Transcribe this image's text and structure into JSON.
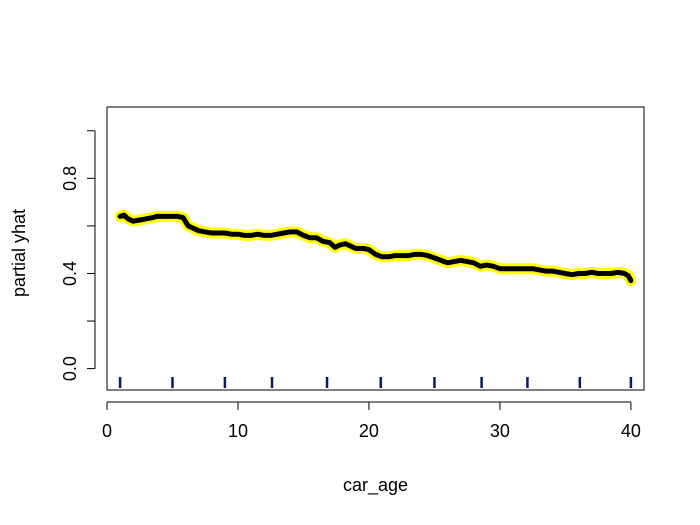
{
  "chart_data": {
    "type": "line",
    "title": "",
    "xlabel": "car_age",
    "ylabel": "partial yhat",
    "xlim": [
      0,
      41
    ],
    "ylim": [
      -0.09,
      1.1
    ],
    "xticks": [
      0,
      10,
      20,
      30,
      40
    ],
    "xtick_labels": [
      "0",
      "10",
      "20",
      "30",
      "40"
    ],
    "yticks": [
      0.0,
      0.2,
      0.4,
      0.6,
      0.8,
      1.0
    ],
    "ytick_labels": [
      "0.0",
      "",
      "0.4",
      "",
      "0.8",
      ""
    ],
    "grid": false,
    "line_color": "#000000",
    "highlight_color": "#ffff00",
    "rug_color": "#0a1a5c",
    "rug_x": [
      1,
      5,
      9,
      12.6,
      16.8,
      20.9,
      25,
      28.6,
      32.1,
      36.1,
      40
    ],
    "series": [
      {
        "x": [
          1.0,
          1.3,
          1.6,
          2.0,
          2.5,
          3.0,
          3.5,
          3.8,
          4.2,
          4.6,
          5.0,
          5.4,
          5.8,
          6.2,
          6.6,
          7.0,
          7.5,
          8.0,
          8.5,
          9.0,
          9.5,
          10.0,
          10.5,
          11.0,
          11.5,
          12.0,
          12.5,
          13.0,
          13.5,
          14.0,
          14.5,
          15.0,
          15.5,
          16.0,
          16.5,
          17.0,
          17.4,
          17.8,
          18.2,
          18.6,
          19.0,
          19.3,
          19.6,
          20.0,
          20.5,
          21.0,
          21.5,
          22.0,
          22.5,
          23.0,
          23.5,
          24.0,
          24.5,
          25.0,
          25.5,
          26.0,
          26.5,
          27.0,
          27.5,
          28.0,
          28.5,
          29.0,
          29.5,
          30.0,
          30.5,
          31.0,
          31.5,
          32.0,
          32.5,
          33.0,
          33.5,
          34.0,
          34.5,
          35.0,
          35.5,
          36.0,
          36.5,
          37.0,
          37.5,
          38.0,
          38.5,
          39.0,
          39.5,
          39.8,
          40.0
        ],
        "y": [
          0.64,
          0.645,
          0.63,
          0.62,
          0.625,
          0.63,
          0.635,
          0.64,
          0.64,
          0.64,
          0.64,
          0.64,
          0.635,
          0.6,
          0.59,
          0.58,
          0.575,
          0.57,
          0.57,
          0.57,
          0.565,
          0.565,
          0.56,
          0.56,
          0.565,
          0.56,
          0.56,
          0.565,
          0.57,
          0.575,
          0.575,
          0.56,
          0.55,
          0.55,
          0.535,
          0.53,
          0.51,
          0.52,
          0.525,
          0.515,
          0.505,
          0.505,
          0.505,
          0.5,
          0.48,
          0.47,
          0.47,
          0.475,
          0.475,
          0.475,
          0.48,
          0.48,
          0.475,
          0.465,
          0.455,
          0.445,
          0.45,
          0.455,
          0.45,
          0.445,
          0.43,
          0.435,
          0.43,
          0.42,
          0.42,
          0.42,
          0.42,
          0.42,
          0.42,
          0.415,
          0.41,
          0.41,
          0.405,
          0.4,
          0.395,
          0.4,
          0.4,
          0.405,
          0.4,
          0.4,
          0.4,
          0.405,
          0.4,
          0.39,
          0.37
        ]
      }
    ]
  }
}
